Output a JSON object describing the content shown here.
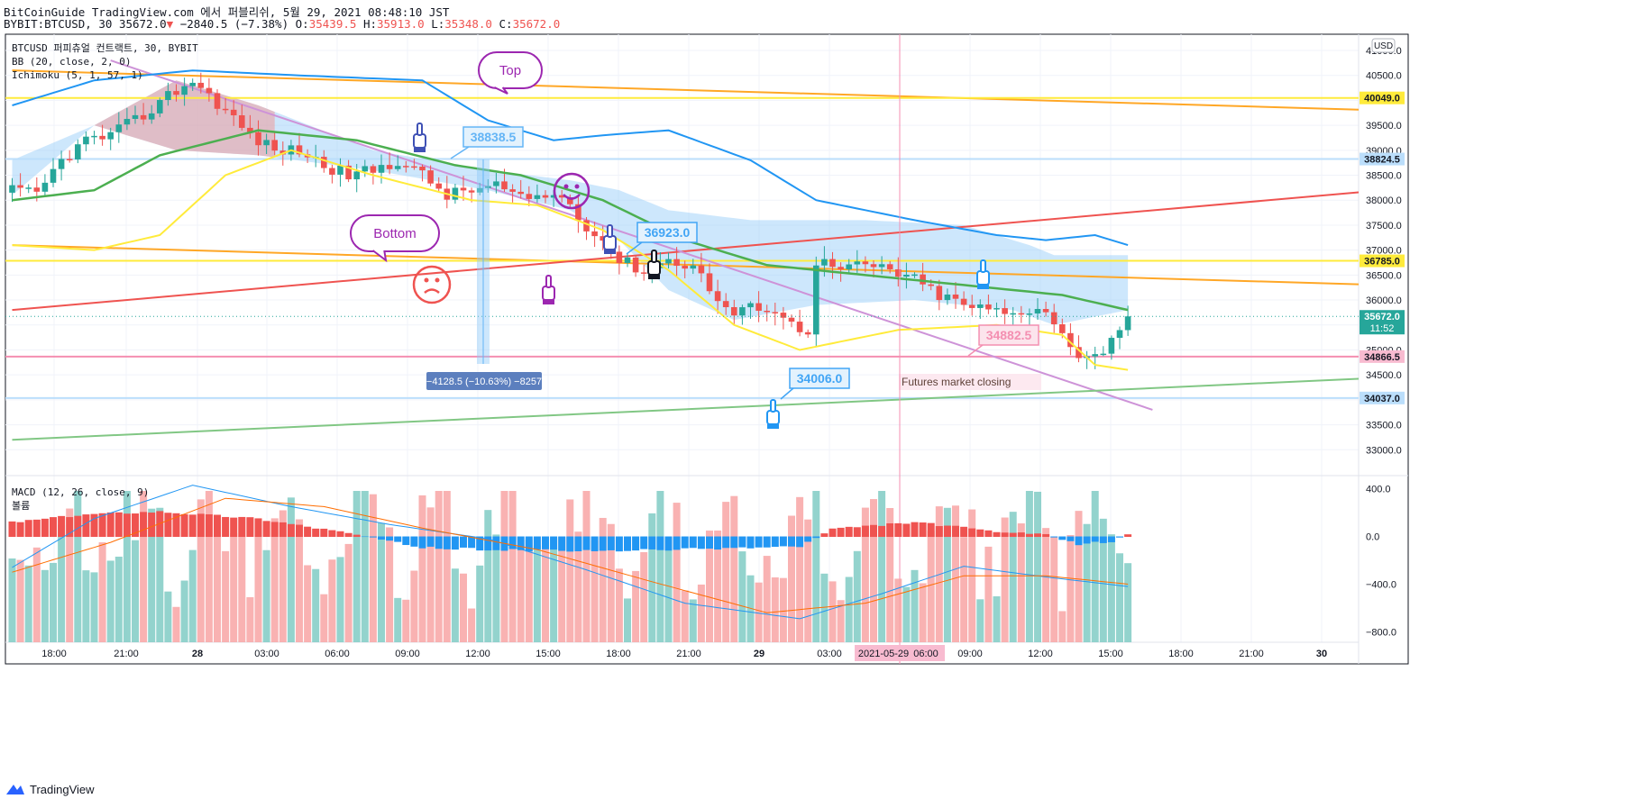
{
  "header": {
    "publisher_line": "BitCoinGuide TradingView.com 에서 퍼블리쉬, 5월 29, 2021 08:48:10 JST",
    "symbol_full": "BYBIT:BTCUSD, 30",
    "last_price": "35672.0",
    "change_arrow": "▼",
    "change": "−2840.5 (−7.38%)",
    "open_label": "O:",
    "open": "35439.5",
    "high_label": "H:",
    "high": "35913.0",
    "low_label": "L:",
    "low": "35348.0",
    "close_label": "C:",
    "close": "35672.0"
  },
  "legend": {
    "title": "BTCUSD 퍼피츄얼 컨트랙트, 30, BYBIT",
    "bb": "BB (20, close, 2, 0)",
    "ichimoku": "Ichimoku (5, 1, 57, 1)",
    "macd": "MACD (12, 26, close, 9)",
    "volume": "볼륨"
  },
  "currency_badge": "USD",
  "annotations": {
    "top": "Top",
    "bottom": "Bottom",
    "futures": "Futures market closing",
    "measure": "−4128.5 (−10.63%) −8257",
    "p38838": "38838.5",
    "p36923": "36923.0",
    "p34882": "34882.5",
    "p34006": "34006.0"
  },
  "price_badges": {
    "b40049": "40049.0",
    "b38824": "38824.5",
    "b36785": "36785.0",
    "b35672": "35672.0",
    "b_countdown": "11:52",
    "b34866": "34866.5",
    "b34037": "34037.0"
  },
  "cursor_date": "2021-05-29",
  "cursor_time": "06:00",
  "footer": {
    "brand": "TradingView"
  },
  "colors": {
    "up": "#26a69a",
    "down": "#ef5350",
    "bb_band": "#2196f3",
    "bb_mid": "#4caf50",
    "ichimoku_fast": "#ffeb3b",
    "cloud": "#90caf9",
    "orange_line": "#ffa726",
    "yellow_line": "#ffeb3b",
    "red_line": "#ef5350",
    "violet_line": "#ce93d8",
    "green_line": "#81c784",
    "pink_line": "#f48fb1",
    "macd_line": "#2196f3",
    "signal_line": "#ff6d00"
  },
  "chart_data": {
    "type": "candlestick",
    "interval": "30",
    "price_axis": {
      "ylim": [
        32500,
        41000
      ],
      "ticks": [
        33000,
        33500,
        34000,
        34500,
        35000,
        35500,
        36000,
        36500,
        37000,
        37500,
        38000,
        38500,
        39000,
        39500,
        40000,
        40500,
        41000
      ]
    },
    "time_axis": {
      "ticks": [
        "18:00",
        "21:00",
        "28",
        "03:00",
        "06:00",
        "09:00",
        "12:00",
        "15:00",
        "18:00",
        "21:00",
        "29",
        "03:00",
        "06:00",
        "09:00",
        "12:00",
        "15:00",
        "18:00",
        "21:00",
        "30"
      ]
    },
    "macd_axis": {
      "ylim": [
        -880,
        480
      ],
      "ticks": [
        "400.0",
        "0.0",
        "−400.0",
        "−800.0"
      ]
    },
    "anchor_closes": [
      [
        0,
        38200
      ],
      [
        3,
        38100
      ],
      [
        6,
        38800
      ],
      [
        9,
        39200
      ],
      [
        12,
        39300
      ],
      [
        14,
        39500
      ],
      [
        16,
        39700
      ],
      [
        19,
        40100
      ],
      [
        22,
        40400
      ],
      [
        26,
        39800
      ],
      [
        29,
        39300
      ],
      [
        32,
        39000
      ],
      [
        35,
        39000
      ],
      [
        38,
        38700
      ],
      [
        41,
        38500
      ],
      [
        44,
        38600
      ],
      [
        47,
        38800
      ],
      [
        50,
        38500
      ],
      [
        53,
        38100
      ],
      [
        56,
        38200
      ],
      [
        59,
        38300
      ],
      [
        62,
        38000
      ],
      [
        65,
        38100
      ],
      [
        68,
        38000
      ],
      [
        69,
        37600
      ],
      [
        71,
        37400
      ],
      [
        74,
        36800
      ],
      [
        77,
        36600
      ],
      [
        80,
        36800
      ],
      [
        83,
        36700
      ],
      [
        86,
        36000
      ],
      [
        88,
        35700
      ],
      [
        91,
        35900
      ],
      [
        93,
        35800
      ],
      [
        95,
        35500
      ],
      [
        97,
        35400
      ],
      [
        98,
        36800
      ],
      [
        101,
        36600
      ],
      [
        104,
        36700
      ],
      [
        107,
        36600
      ],
      [
        110,
        36400
      ],
      [
        113,
        36100
      ],
      [
        116,
        35900
      ],
      [
        119,
        35800
      ],
      [
        122,
        35700
      ],
      [
        125,
        35900
      ],
      [
        127,
        35600
      ],
      [
        129,
        35000
      ],
      [
        131,
        34900
      ],
      [
        133,
        35000
      ],
      [
        135,
        35300
      ],
      [
        136,
        35672
      ]
    ],
    "bb_upper": [
      [
        0,
        39900
      ],
      [
        10,
        40400
      ],
      [
        22,
        40600
      ],
      [
        35,
        40500
      ],
      [
        50,
        40400
      ],
      [
        58,
        39600
      ],
      [
        66,
        39200
      ],
      [
        72,
        39300
      ],
      [
        80,
        39400
      ],
      [
        90,
        38800
      ],
      [
        98,
        38000
      ],
      [
        110,
        37600
      ],
      [
        120,
        37300
      ],
      [
        126,
        37200
      ],
      [
        132,
        37300
      ],
      [
        136,
        37100
      ]
    ],
    "bb_basis": [
      [
        0,
        38000
      ],
      [
        10,
        38200
      ],
      [
        18,
        38900
      ],
      [
        30,
        39400
      ],
      [
        42,
        39200
      ],
      [
        54,
        38700
      ],
      [
        62,
        38500
      ],
      [
        72,
        38000
      ],
      [
        82,
        37200
      ],
      [
        92,
        36700
      ],
      [
        104,
        36500
      ],
      [
        116,
        36300
      ],
      [
        128,
        36100
      ],
      [
        136,
        35800
      ]
    ],
    "ichimoku_fast": [
      [
        0,
        37100
      ],
      [
        10,
        37000
      ],
      [
        18,
        37300
      ],
      [
        26,
        38500
      ],
      [
        34,
        39000
      ],
      [
        44,
        38500
      ],
      [
        56,
        38000
      ],
      [
        64,
        37900
      ],
      [
        72,
        37400
      ],
      [
        80,
        36600
      ],
      [
        88,
        35500
      ],
      [
        96,
        35000
      ],
      [
        108,
        35400
      ],
      [
        120,
        35500
      ],
      [
        128,
        35300
      ],
      [
        132,
        34700
      ],
      [
        136,
        34600
      ]
    ],
    "cloud": {
      "top": [
        [
          0,
          38800
        ],
        [
          10,
          39500
        ],
        [
          20,
          40400
        ],
        [
          30,
          39900
        ],
        [
          44,
          39000
        ],
        [
          58,
          38600
        ],
        [
          68,
          38400
        ],
        [
          74,
          38200
        ],
        [
          80,
          37800
        ],
        [
          90,
          37600
        ],
        [
          104,
          37600
        ],
        [
          116,
          37500
        ],
        [
          124,
          37100
        ],
        [
          127,
          36900
        ],
        [
          136,
          36900
        ]
      ],
      "bottom": [
        [
          0,
          38100
        ],
        [
          10,
          39500
        ],
        [
          20,
          39000
        ],
        [
          30,
          38900
        ],
        [
          44,
          38600
        ],
        [
          58,
          38200
        ],
        [
          68,
          37800
        ],
        [
          74,
          37200
        ],
        [
          80,
          36200
        ],
        [
          88,
          35600
        ],
        [
          98,
          35900
        ],
        [
          110,
          36000
        ],
        [
          122,
          35800
        ],
        [
          127,
          35500
        ],
        [
          136,
          35800
        ]
      ]
    },
    "drawn_lines": [
      {
        "kind": "trend",
        "color": "orange",
        "from": [
          0,
          40600
        ],
        "to": [
          188,
          39700
        ]
      },
      {
        "kind": "trend",
        "color": "orange",
        "from": [
          0,
          37100
        ],
        "to": [
          188,
          36200
        ]
      },
      {
        "kind": "horizontal",
        "color": "yellow",
        "price": 40049.0
      },
      {
        "kind": "horizontal",
        "color": "yellow",
        "price": 36785.0
      },
      {
        "kind": "horizontal",
        "color": "lightblue",
        "price": 38824.5
      },
      {
        "kind": "horizontal",
        "color": "pink",
        "price": 34866.5
      },
      {
        "kind": "horizontal",
        "color": "lightblue",
        "price": 34037.0
      },
      {
        "kind": "trend",
        "color": "red",
        "from": [
          0,
          35800
        ],
        "to": [
          188,
          38500
        ]
      },
      {
        "kind": "trend",
        "color": "violet",
        "from": [
          12,
          40800
        ],
        "to": [
          139,
          33800
        ]
      },
      {
        "kind": "trend",
        "color": "green",
        "from": [
          0,
          33200
        ],
        "to": [
          188,
          34600
        ]
      }
    ],
    "macd_hist_sign": "positive then negative then small positive",
    "last_price_line": 35672.0
  }
}
